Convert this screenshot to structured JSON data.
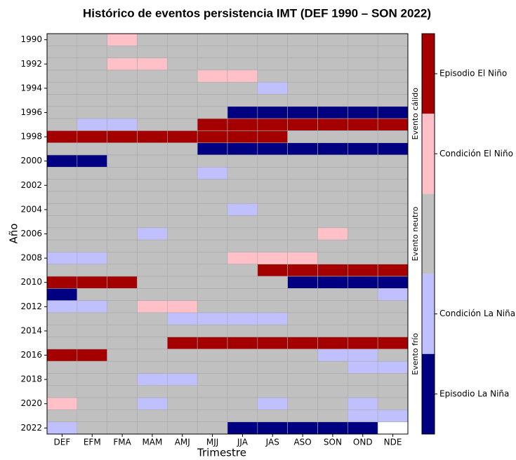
{
  "chart_data": {
    "type": "heatmap",
    "title": "Histórico de eventos persistencia IMT (DEF 1990 – SON 2022)",
    "x_label": "Trimestre",
    "y_label": "Año",
    "categories": [
      "DEF",
      "EFM",
      "FMA",
      "MAM",
      "AMJ",
      "MJJ",
      "JJA",
      "JAS",
      "ASO",
      "SON",
      "OND",
      "NDE"
    ],
    "rows": [
      "1990",
      null,
      "1992",
      null,
      "1994",
      null,
      "1996",
      null,
      "1998",
      null,
      "2000",
      null,
      "2002",
      null,
      "2004",
      null,
      "2006",
      null,
      "2008",
      null,
      "2010",
      null,
      "2012",
      null,
      "2014",
      null,
      "2016",
      null,
      "2018",
      null,
      "2020",
      null,
      "2022"
    ],
    "z": [
      [
        0,
        0,
        1,
        0,
        0,
        0,
        0,
        0,
        0,
        0,
        0,
        0
      ],
      [
        0,
        0,
        0,
        0,
        0,
        0,
        0,
        0,
        0,
        0,
        0,
        0
      ],
      [
        0,
        0,
        1,
        1,
        0,
        0,
        0,
        0,
        0,
        0,
        0,
        0
      ],
      [
        0,
        0,
        0,
        0,
        0,
        1,
        1,
        0,
        0,
        0,
        0,
        0
      ],
      [
        0,
        0,
        0,
        0,
        0,
        0,
        0,
        -1,
        0,
        0,
        0,
        0
      ],
      [
        0,
        0,
        0,
        0,
        0,
        0,
        0,
        0,
        0,
        0,
        0,
        0
      ],
      [
        0,
        0,
        0,
        0,
        0,
        0,
        -2,
        -2,
        -2,
        -2,
        -2,
        -2
      ],
      [
        0,
        -1,
        -1,
        0,
        0,
        2,
        2,
        2,
        2,
        2,
        2,
        2
      ],
      [
        2,
        2,
        2,
        2,
        2,
        2,
        2,
        2,
        0,
        0,
        0,
        0
      ],
      [
        0,
        0,
        0,
        0,
        0,
        -2,
        -2,
        -2,
        -2,
        -2,
        -2,
        -2
      ],
      [
        -2,
        -2,
        0,
        0,
        0,
        0,
        0,
        0,
        0,
        0,
        0,
        0
      ],
      [
        0,
        0,
        0,
        0,
        0,
        -1,
        0,
        0,
        0,
        0,
        0,
        0
      ],
      [
        0,
        0,
        0,
        0,
        0,
        0,
        0,
        0,
        0,
        0,
        0,
        0
      ],
      [
        0,
        0,
        0,
        0,
        0,
        0,
        0,
        0,
        0,
        0,
        0,
        0
      ],
      [
        0,
        0,
        0,
        0,
        0,
        0,
        -1,
        0,
        0,
        0,
        0,
        0
      ],
      [
        0,
        0,
        0,
        0,
        0,
        0,
        0,
        0,
        0,
        0,
        0,
        0
      ],
      [
        0,
        0,
        0,
        -1,
        0,
        0,
        0,
        0,
        0,
        1,
        0,
        0
      ],
      [
        0,
        0,
        0,
        0,
        0,
        0,
        0,
        0,
        0,
        0,
        0,
        0
      ],
      [
        -1,
        -1,
        0,
        0,
        0,
        0,
        1,
        1,
        1,
        0,
        0,
        0
      ],
      [
        0,
        0,
        0,
        0,
        0,
        0,
        0,
        2,
        2,
        2,
        2,
        2
      ],
      [
        2,
        2,
        2,
        0,
        0,
        0,
        0,
        0,
        -2,
        -2,
        -2,
        -2
      ],
      [
        -2,
        0,
        0,
        0,
        0,
        0,
        0,
        0,
        0,
        0,
        0,
        -1
      ],
      [
        -1,
        -1,
        0,
        1,
        1,
        0,
        0,
        0,
        0,
        0,
        0,
        0
      ],
      [
        0,
        0,
        0,
        0,
        -1,
        -1,
        -1,
        -1,
        0,
        0,
        0,
        0
      ],
      [
        0,
        0,
        0,
        0,
        0,
        0,
        0,
        0,
        0,
        0,
        0,
        0
      ],
      [
        0,
        0,
        0,
        0,
        2,
        2,
        2,
        2,
        2,
        2,
        2,
        2
      ],
      [
        2,
        2,
        0,
        0,
        0,
        0,
        0,
        0,
        0,
        -1,
        -1,
        0
      ],
      [
        0,
        0,
        0,
        0,
        0,
        0,
        0,
        0,
        0,
        0,
        -1,
        -1
      ],
      [
        0,
        0,
        0,
        -1,
        -1,
        0,
        0,
        0,
        0,
        0,
        0,
        0
      ],
      [
        0,
        0,
        0,
        0,
        0,
        0,
        0,
        0,
        0,
        0,
        0,
        0
      ],
      [
        1,
        0,
        0,
        -1,
        0,
        0,
        0,
        -1,
        0,
        0,
        -1,
        0
      ],
      [
        0,
        0,
        0,
        0,
        0,
        0,
        0,
        0,
        0,
        0,
        -1,
        -1
      ],
      [
        -1,
        0,
        0,
        0,
        0,
        0,
        -2,
        -2,
        -2,
        -2,
        -2,
        null
      ]
    ],
    "colorbar": [
      {
        "value": 2,
        "label": "Episodio El Niño",
        "color": "#a50000"
      },
      {
        "value": 1,
        "label": "Condición El Niño",
        "color": "#ffc0c8"
      },
      {
        "value": 0,
        "color": "#c0c0c0"
      },
      {
        "value": -1,
        "label": "Condición La Niña",
        "color": "#c0c0ff"
      },
      {
        "value": -2,
        "label": "Episodio La Niña",
        "color": "#000080"
      }
    ],
    "event_labels": [
      "Evento cálido",
      "Evento neutro",
      "Evento frío"
    ]
  }
}
